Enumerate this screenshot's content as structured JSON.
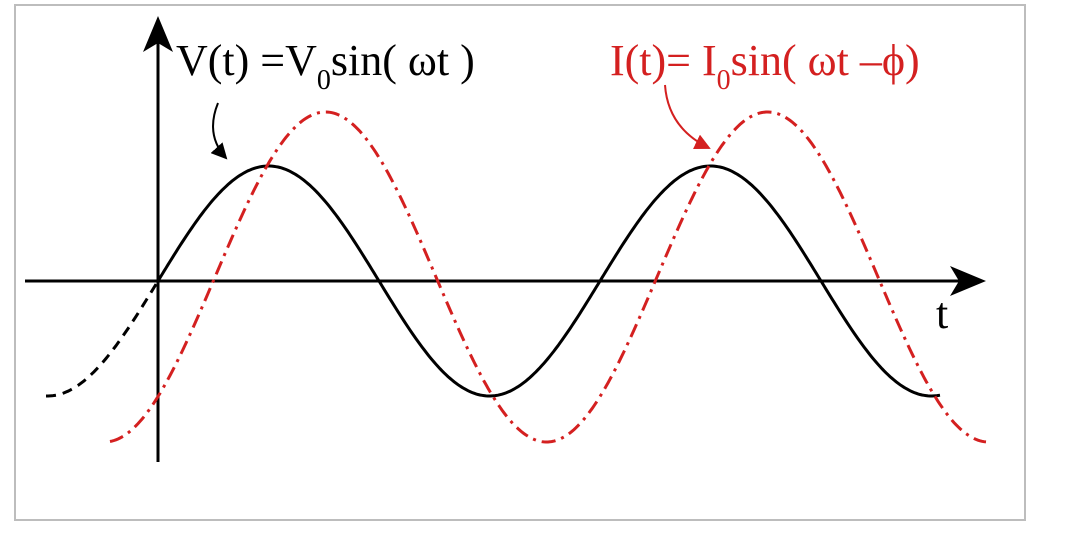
{
  "voltage_label": {
    "main": "V(t) =V",
    "subscript": "0",
    "rest": "sin( ωt )"
  },
  "current_label": {
    "main": "I(t)= I",
    "subscript": "0",
    "rest": "sin( ωt –ϕ)"
  },
  "axis_label": "t"
}
